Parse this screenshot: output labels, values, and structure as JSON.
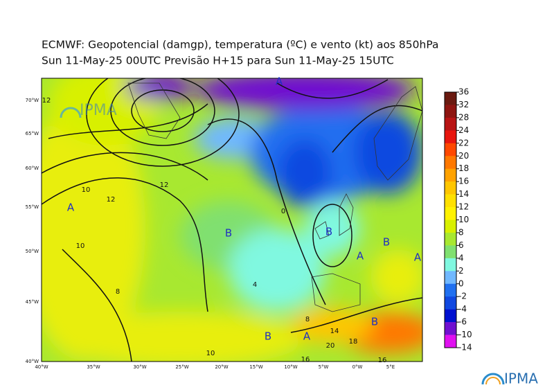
{
  "header": {
    "line1": "ECMWF:  Geopotencial (damgp), temperatura (ºC) e vento (kt) aos 850hPa",
    "line2": "Sun 11-May-25 00UTC Previsão H+15 para Sun 11-May-25 15UTC"
  },
  "colorbar": {
    "levels": [
      36,
      32,
      28,
      24,
      22,
      20,
      18,
      16,
      14,
      12,
      10,
      8,
      6,
      4,
      2,
      0,
      -2,
      -4,
      -6,
      -10,
      -14
    ],
    "colors": [
      "#6a1a10",
      "#8e1510",
      "#b81414",
      "#e8160e",
      "#ff4800",
      "#ff7800",
      "#ffa200",
      "#ffc600",
      "#ffe000",
      "#fff200",
      "#d8f000",
      "#a8e830",
      "#80e070",
      "#80f8e0",
      "#70b8ff",
      "#2070f0",
      "#1048e0",
      "#0010d0",
      "#7010d0",
      "#e010f0"
    ]
  },
  "axes": {
    "lat_labels": [
      "70°W",
      "65°W",
      "60°W",
      "55°W",
      "50°W",
      "45°W",
      "40°W"
    ],
    "lon_labels": [
      "40°W",
      "35°W",
      "30°W",
      "25°W",
      "20°W",
      "15°W",
      "10°W",
      "5°W",
      "0°W",
      "5°E"
    ]
  },
  "map_labels": [
    "A",
    "B",
    "B",
    "A",
    "B",
    "A",
    "B",
    "A",
    "B",
    "A"
  ],
  "contour_labels": [
    "10",
    "12",
    "10",
    "8",
    "12",
    "4",
    "8",
    "14",
    "20",
    "18",
    "16",
    "16",
    "10",
    "0",
    "12"
  ],
  "logo": "IPMA"
}
